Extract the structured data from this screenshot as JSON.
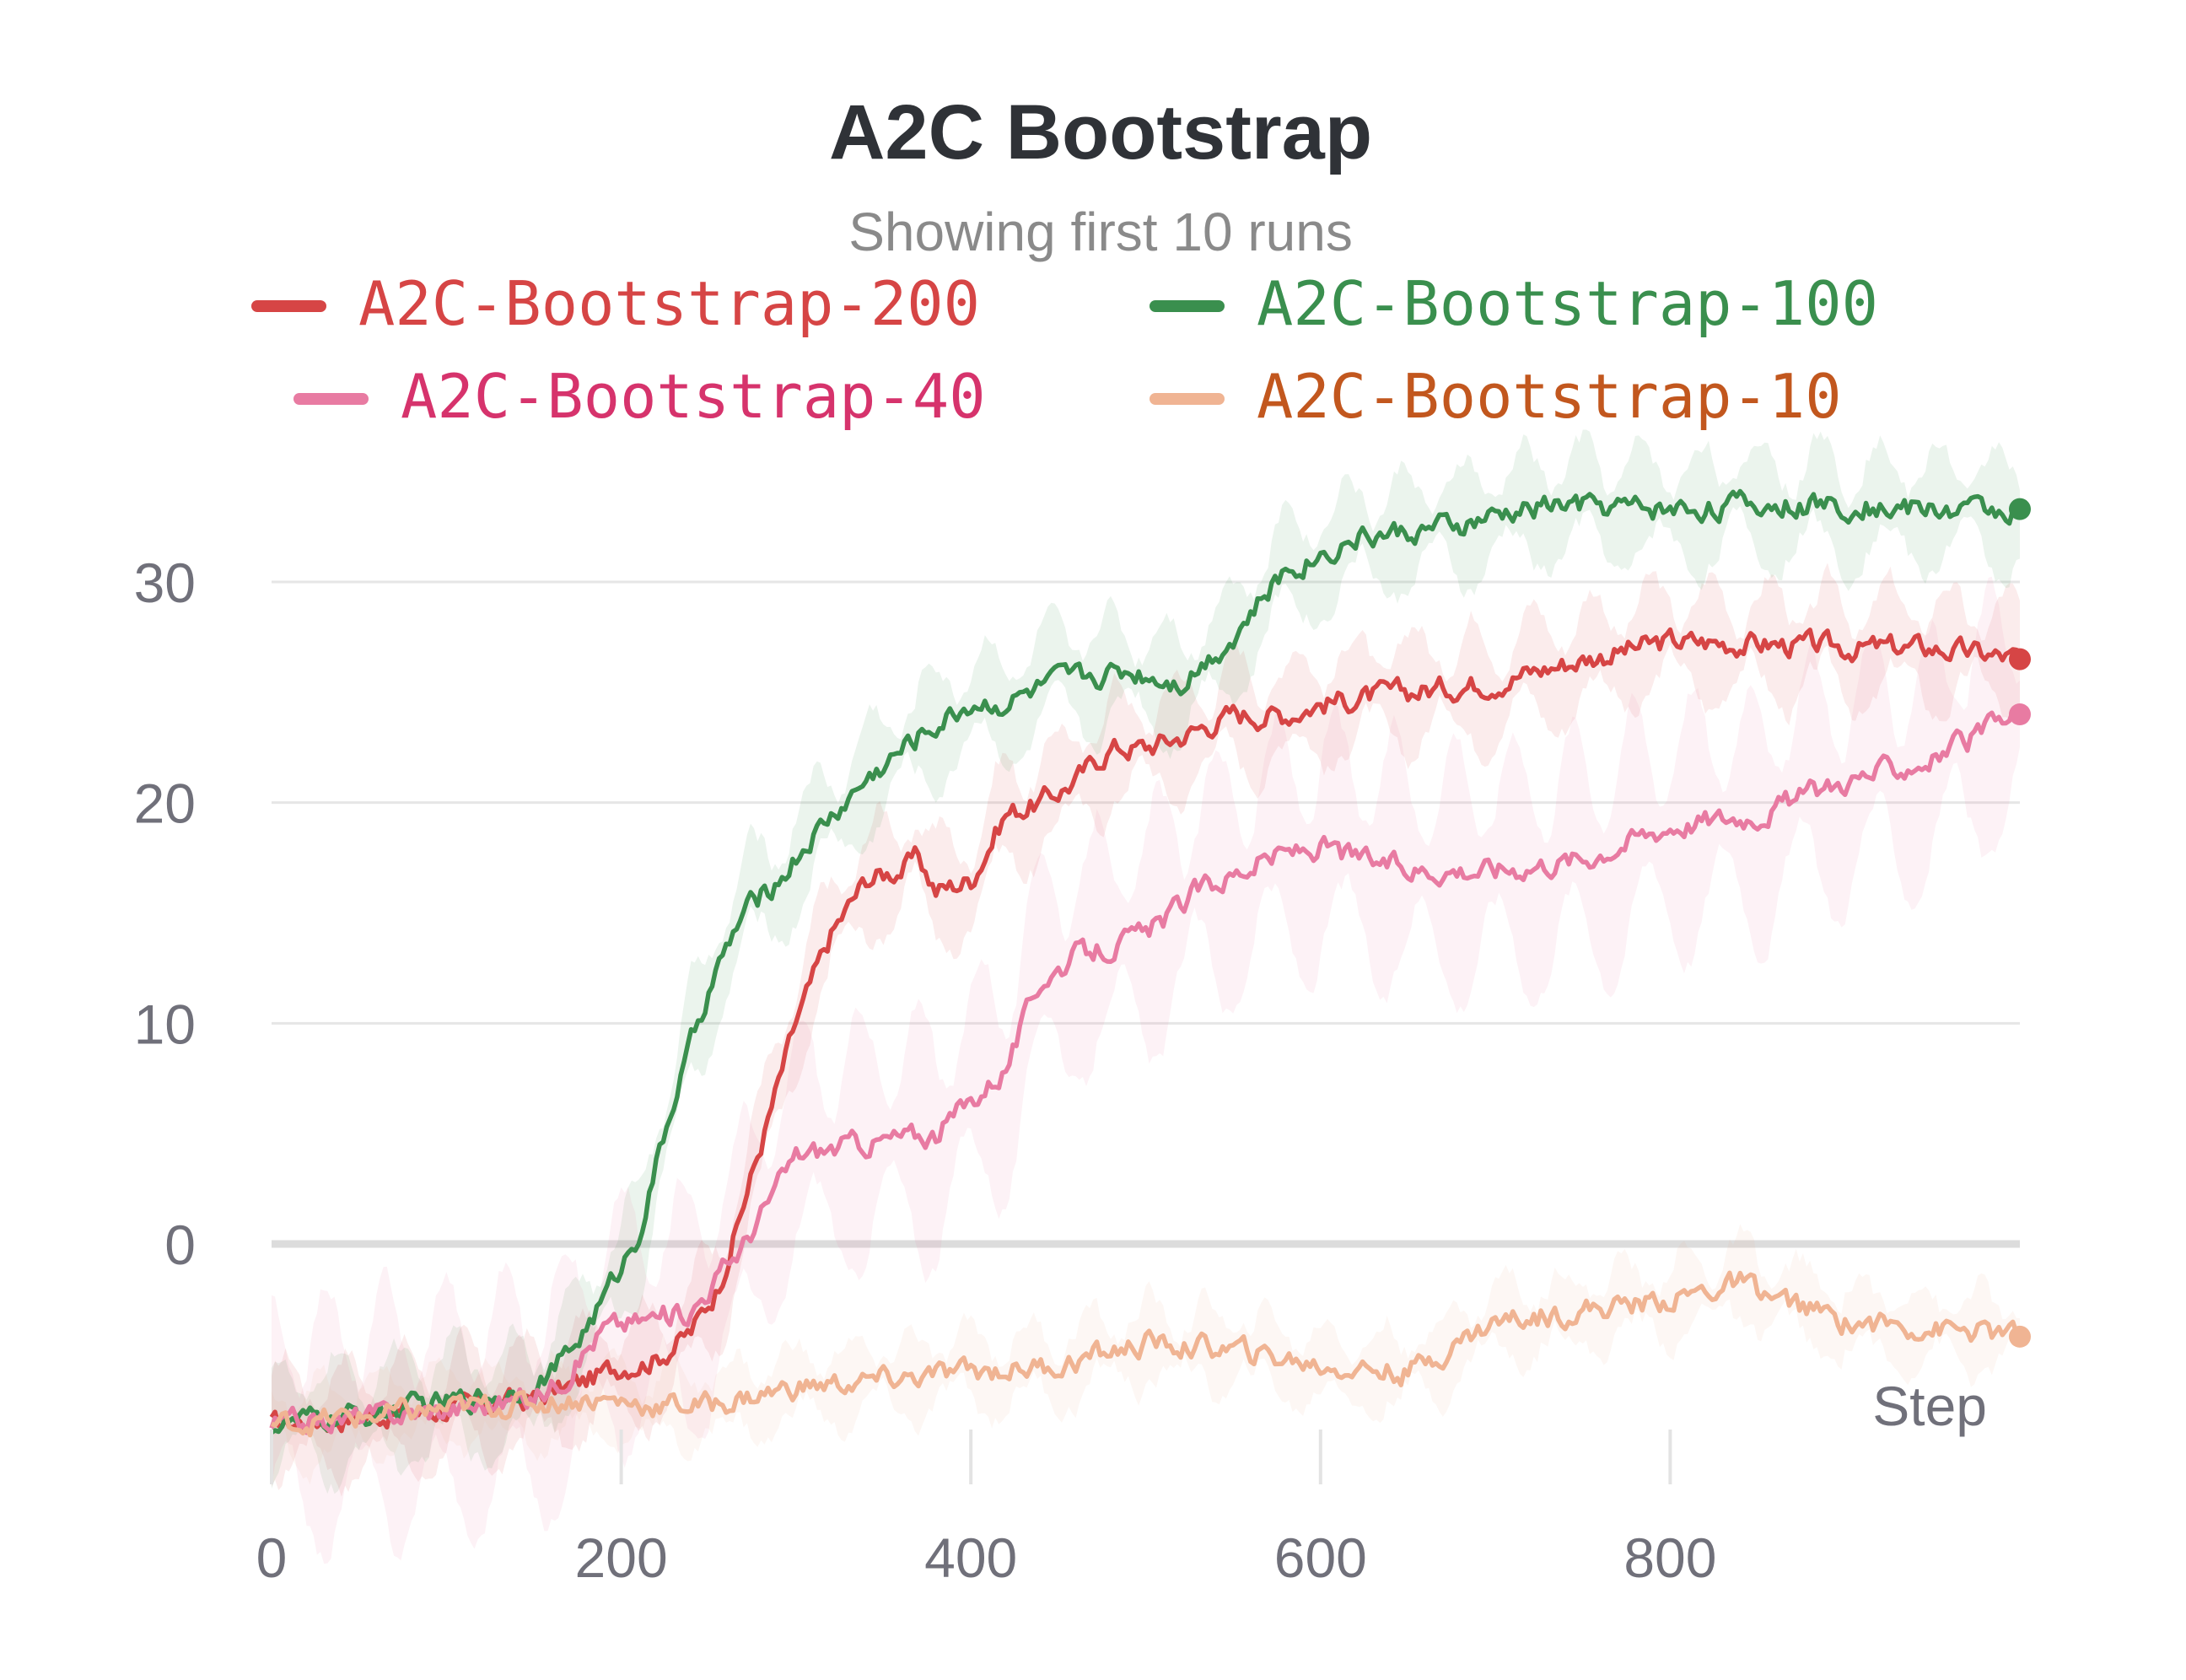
{
  "chart_data": {
    "type": "line",
    "title": "A2C Bootstrap",
    "subtitle": "Showing first 10 runs",
    "xlabel": "Step",
    "ylabel": "",
    "xlim": [
      0,
      1000
    ],
    "ylim": [
      -11,
      34
    ],
    "x_ticks": [
      0,
      200,
      400,
      600,
      800
    ],
    "y_ticks": [
      0,
      10,
      20,
      30
    ],
    "grid": "horizontal",
    "legend_position": "top",
    "series": [
      {
        "name": "A2C-Bootstrap-200",
        "color": "#d64545",
        "label_color": "#d64545",
        "band": 2.5,
        "points": [
          [
            0,
            -8.2
          ],
          [
            50,
            -7.8
          ],
          [
            100,
            -7.5
          ],
          [
            150,
            -7.0
          ],
          [
            180,
            -6.2
          ],
          [
            200,
            -5.5
          ],
          [
            220,
            -5.2
          ],
          [
            240,
            -4.0
          ],
          [
            255,
            -2.0
          ],
          [
            265,
            0.5
          ],
          [
            280,
            4.5
          ],
          [
            300,
            10
          ],
          [
            320,
            14
          ],
          [
            340,
            16.5
          ],
          [
            360,
            17.0
          ],
          [
            370,
            17.5
          ],
          [
            380,
            16
          ],
          [
            400,
            16.5
          ],
          [
            420,
            19.5
          ],
          [
            440,
            20
          ],
          [
            460,
            21
          ],
          [
            480,
            22.5
          ],
          [
            500,
            22.5
          ],
          [
            520,
            23
          ],
          [
            550,
            24
          ],
          [
            580,
            24
          ],
          [
            600,
            24.5
          ],
          [
            650,
            25
          ],
          [
            700,
            25.5
          ],
          [
            750,
            26.5
          ],
          [
            800,
            27.3
          ],
          [
            850,
            27.2
          ],
          [
            900,
            27
          ],
          [
            950,
            27
          ],
          [
            1000,
            26.5
          ]
        ]
      },
      {
        "name": "A2C-Bootstrap-100",
        "color": "#3a8f4e",
        "label_color": "#3a8f4e",
        "band": 2.5,
        "points": [
          [
            0,
            -8.2
          ],
          [
            50,
            -7.8
          ],
          [
            100,
            -7.2
          ],
          [
            150,
            -6.5
          ],
          [
            170,
            -5
          ],
          [
            190,
            -2.5
          ],
          [
            210,
            0.5
          ],
          [
            230,
            6.5
          ],
          [
            250,
            11.5
          ],
          [
            270,
            15
          ],
          [
            290,
            16.5
          ],
          [
            310,
            18.5
          ],
          [
            340,
            21
          ],
          [
            370,
            23
          ],
          [
            400,
            24.5
          ],
          [
            420,
            24.5
          ],
          [
            450,
            25.5
          ],
          [
            490,
            26
          ],
          [
            520,
            25.5
          ],
          [
            550,
            27.5
          ],
          [
            580,
            30.5
          ],
          [
            620,
            32
          ],
          [
            680,
            32.5
          ],
          [
            730,
            33.5
          ],
          [
            800,
            33.3
          ],
          [
            850,
            33.5
          ],
          [
            900,
            33.5
          ],
          [
            950,
            33.3
          ],
          [
            1000,
            33.3
          ]
        ]
      },
      {
        "name": "A2C-Bootstrap-40",
        "color": "#e87ba2",
        "label_color": "#d6336c",
        "band": 5,
        "points": [
          [
            0,
            -8.2
          ],
          [
            100,
            -7.5
          ],
          [
            150,
            -7.0
          ],
          [
            170,
            -5.8
          ],
          [
            190,
            -3.8
          ],
          [
            210,
            -3.5
          ],
          [
            240,
            -3.0
          ],
          [
            270,
            0
          ],
          [
            300,
            4
          ],
          [
            330,
            4.5
          ],
          [
            380,
            5
          ],
          [
            400,
            6.5
          ],
          [
            420,
            8
          ],
          [
            440,
            12
          ],
          [
            460,
            13
          ],
          [
            500,
            14
          ],
          [
            530,
            16
          ],
          [
            570,
            17.5
          ],
          [
            600,
            18
          ],
          [
            620,
            17.5
          ],
          [
            650,
            17
          ],
          [
            700,
            17
          ],
          [
            750,
            17.5
          ],
          [
            800,
            19
          ],
          [
            850,
            19.5
          ],
          [
            900,
            21
          ],
          [
            950,
            22
          ],
          [
            1000,
            24
          ]
        ]
      },
      {
        "name": "A2C-Bootstrap-10",
        "color": "#f0b493",
        "label_color": "#c2571e",
        "band": 1.8,
        "points": [
          [
            0,
            -8.2
          ],
          [
            100,
            -7.5
          ],
          [
            180,
            -7.0
          ],
          [
            220,
            -7.3
          ],
          [
            250,
            -7.3
          ],
          [
            300,
            -6.5
          ],
          [
            350,
            -6.2
          ],
          [
            400,
            -5.8
          ],
          [
            450,
            -5.5
          ],
          [
            500,
            -4.5
          ],
          [
            550,
            -4.8
          ],
          [
            600,
            -5.5
          ],
          [
            650,
            -5.8
          ],
          [
            700,
            -3.5
          ],
          [
            750,
            -3.0
          ],
          [
            800,
            -2.5
          ],
          [
            840,
            -1.8
          ],
          [
            860,
            -2.5
          ],
          [
            900,
            -3.5
          ],
          [
            950,
            -3.8
          ],
          [
            1000,
            -4.2
          ]
        ]
      }
    ]
  }
}
